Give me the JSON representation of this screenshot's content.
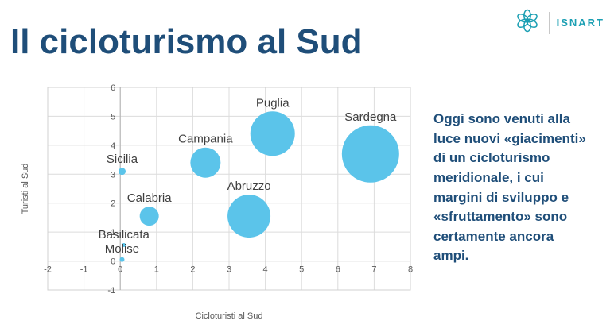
{
  "header": {
    "title": "Il cicloturismo al Sud",
    "brand": "ISNART"
  },
  "colors": {
    "title_navy": "#1F4E79",
    "bubble": "#5BC4EA",
    "brand_teal": "#1B9FB3",
    "grid": "#dcdcdc"
  },
  "commentary": "Oggi sono venuti alla luce nuovi «giacimenti» di un cicloturismo meridionale, i cui margini di sviluppo e «sfruttamento» sono certamente ancora ampi.",
  "chart_data": {
    "type": "scatter",
    "subtype": "bubble",
    "title": "",
    "xlabel": "Cicloturisti al Sud",
    "ylabel": "Turisti al Sud",
    "xlim": [
      -2,
      8
    ],
    "ylim": [
      -1,
      6
    ],
    "xticks": [
      -2,
      -1,
      0,
      1,
      2,
      3,
      4,
      5,
      6,
      7,
      8
    ],
    "yticks": [
      -1,
      0,
      1,
      2,
      3,
      4,
      5,
      6
    ],
    "grid": true,
    "legend": false,
    "points": [
      {
        "label": "Sardegna",
        "x": 6.9,
        "y": 3.7,
        "size": 36
      },
      {
        "label": "Puglia",
        "x": 4.2,
        "y": 4.4,
        "size": 28
      },
      {
        "label": "Abruzzo",
        "x": 3.55,
        "y": 1.55,
        "size": 27
      },
      {
        "label": "Campania",
        "x": 2.35,
        "y": 3.4,
        "size": 19
      },
      {
        "label": "Calabria",
        "x": 0.8,
        "y": 1.55,
        "size": 12
      },
      {
        "label": "Sicilia",
        "x": 0.05,
        "y": 3.1,
        "size": 4.5
      },
      {
        "label": "Basilicata",
        "x": 0.1,
        "y": 0.55,
        "size": 2.5
      },
      {
        "label": "Molise",
        "x": 0.05,
        "y": 0.05,
        "size": 3
      }
    ]
  }
}
